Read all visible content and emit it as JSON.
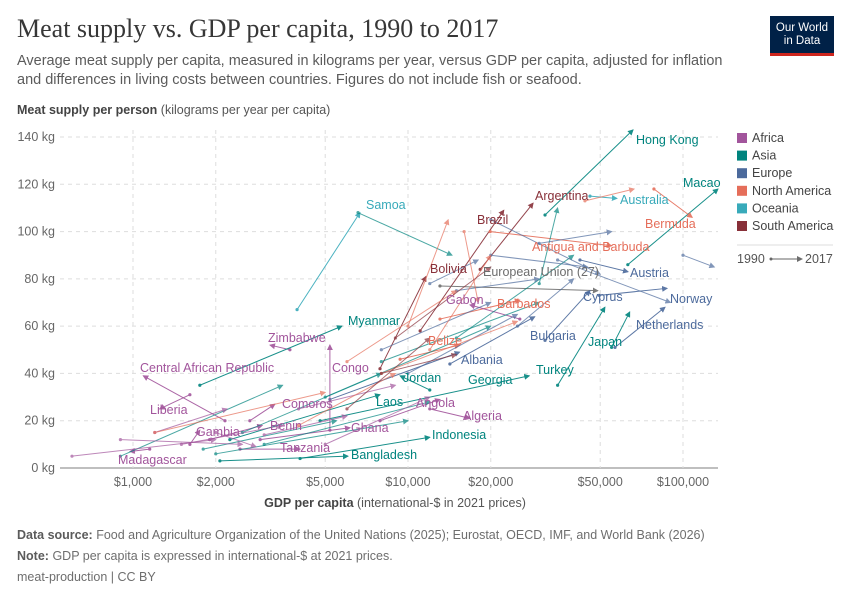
{
  "header": {
    "title": "Meat supply vs. GDP per capita, 1990 to 2017",
    "subtitle": "Average meat supply per capita, measured in kilograms per year, versus GDP per capita, adjusted for inflation and differences in living costs between countries. Figures do not include fish or seafood.",
    "logo_line1": "Our World",
    "logo_line2": "in Data"
  },
  "footer": {
    "source_label": "Data source:",
    "source_text": "Food and Agriculture Organization of the United Nations (2025); Eurostat, OECD, IMF, and World Bank (2026)",
    "note_label": "Note:",
    "note_text": "GDP per capita is expressed in international-$ at 2021 prices.",
    "license": "meat-production | CC BY"
  },
  "chart_data": {
    "type": "scatter",
    "connected": "arrows from 1990 to 2017",
    "xscale": "log",
    "xlim": [
      540,
      134000
    ],
    "ylim": [
      0,
      140
    ],
    "grid": true,
    "legend_placement": "right",
    "ylabel_bold": "Meat supply per person",
    "ylabel_rest": "(kilograms per year per capita)",
    "xlabel_bold": "GDP per capita",
    "xlabel_rest": "(international-$ in 2021 prices)",
    "xticks": [
      {
        "v": 1000,
        "label": "$1,000"
      },
      {
        "v": 2000,
        "label": "$2,000"
      },
      {
        "v": 5000,
        "label": "$5,000"
      },
      {
        "v": 10000,
        "label": "$10,000"
      },
      {
        "v": 20000,
        "label": "$20,000"
      },
      {
        "v": 50000,
        "label": "$50,000"
      },
      {
        "v": 100000,
        "label": "$100,000"
      }
    ],
    "yticks": [
      {
        "v": 0,
        "label": "0 kg"
      },
      {
        "v": 20,
        "label": "20 kg"
      },
      {
        "v": 40,
        "label": "40 kg"
      },
      {
        "v": 60,
        "label": "60 kg"
      },
      {
        "v": 80,
        "label": "80 kg"
      },
      {
        "v": 100,
        "label": "100 kg"
      },
      {
        "v": 120,
        "label": "120 kg"
      },
      {
        "v": 140,
        "label": "140 kg"
      }
    ],
    "legend": [
      {
        "name": "Africa",
        "color": "#a2559c"
      },
      {
        "name": "Asia",
        "color": "#00847e"
      },
      {
        "name": "Europe",
        "color": "#4c6a9c"
      },
      {
        "name": "North America",
        "color": "#e56e5a"
      },
      {
        "name": "Oceania",
        "color": "#38aaba"
      },
      {
        "name": "South America",
        "color": "#883039"
      }
    ],
    "time_legend": {
      "start": "1990",
      "end": "2017"
    },
    "eu_color": "#6d6d6d",
    "series": [
      {
        "name": "Hong Kong",
        "region": "Asia",
        "start": [
          31500,
          107
        ],
        "end": [
          65800,
          143
        ]
      },
      {
        "name": "Macao",
        "region": "Asia",
        "start": [
          63000,
          86
        ],
        "end": [
          134000,
          118
        ]
      },
      {
        "name": "Argentina",
        "region": "South America",
        "start": [
          18300,
          84
        ],
        "end": [
          28500,
          112
        ]
      },
      {
        "name": "Australia",
        "region": "Oceania",
        "start": [
          45900,
          115
        ],
        "end": [
          57500,
          114
        ]
      },
      {
        "name": "Bermuda",
        "region": "North America",
        "start": [
          78400,
          118
        ],
        "end": [
          108000,
          106
        ]
      },
      {
        "name": "Brazil",
        "region": "South America",
        "start": [
          11070,
          58
        ],
        "end": [
          22300,
          109
        ]
      },
      {
        "name": "Samoa",
        "region": "Oceania",
        "start": [
          3950,
          67
        ],
        "end": [
          6690,
          108
        ]
      },
      {
        "name": "Bolivia",
        "region": "South America",
        "start": [
          7910,
          42
        ],
        "end": [
          11620,
          81
        ]
      },
      {
        "name": "European Union (27)",
        "region": "EU",
        "start": [
          13070,
          77
        ],
        "end": [
          49000,
          75
        ]
      },
      {
        "name": "Austria",
        "region": "Europe",
        "start": [
          42200,
          88
        ],
        "end": [
          63100,
          83
        ]
      },
      {
        "name": "Norway",
        "region": "Europe",
        "start": [
          49600,
          73
        ],
        "end": [
          87500,
          76
        ]
      },
      {
        "name": "Netherlands",
        "region": "Europe",
        "start": [
          56600,
          51
        ],
        "end": [
          86000,
          68
        ]
      },
      {
        "name": "Cyprus",
        "region": "Europe",
        "start": [
          31500,
          54
        ],
        "end": [
          45900,
          75
        ]
      },
      {
        "name": "Japan",
        "region": "Asia",
        "start": [
          55000,
          51
        ],
        "end": [
          64000,
          66
        ]
      },
      {
        "name": "Turkey",
        "region": "Asia",
        "start": [
          35000,
          35
        ],
        "end": [
          52000,
          68
        ]
      },
      {
        "name": "Bulgaria",
        "region": "Europe",
        "start": [
          14200,
          44
        ],
        "end": [
          28900,
          64
        ]
      },
      {
        "name": "Barbados",
        "region": "North America",
        "start": [
          13070,
          63
        ],
        "end": [
          25500,
          71
        ]
      },
      {
        "name": "Antigua and Barbuda",
        "region": "North America",
        "start": [
          19900,
          100
        ],
        "end": [
          55000,
          94
        ]
      },
      {
        "name": "Gabon",
        "region": "Africa",
        "start": [
          25500,
          63
        ],
        "end": [
          16800,
          69
        ]
      },
      {
        "name": "Belize",
        "region": "North America",
        "start": [
          9360,
          46
        ],
        "end": [
          15400,
          52
        ]
      },
      {
        "name": "Albania",
        "region": "Europe",
        "start": [
          5200,
          29
        ],
        "end": [
          15400,
          49
        ]
      },
      {
        "name": "Jordan",
        "region": "Asia",
        "start": [
          12000,
          33
        ],
        "end": [
          9360,
          39
        ]
      },
      {
        "name": "Georgia",
        "region": "Asia",
        "start": [
          4790,
          20
        ],
        "end": [
          27600,
          39
        ]
      },
      {
        "name": "Laos",
        "region": "Asia",
        "start": [
          2250,
          12
        ],
        "end": [
          7910,
          31
        ]
      },
      {
        "name": "Angola",
        "region": "Africa",
        "start": [
          7910,
          20
        ],
        "end": [
          13070,
          29
        ]
      },
      {
        "name": "Algeria",
        "region": "Africa",
        "start": [
          12000,
          25
        ],
        "end": [
          16800,
          21
        ]
      },
      {
        "name": "Indonesia",
        "region": "Asia",
        "start": [
          4050,
          4
        ],
        "end": [
          12000,
          13
        ]
      },
      {
        "name": "Bangladesh",
        "region": "Asia",
        "start": [
          2070,
          3
        ],
        "end": [
          6050,
          5
        ]
      },
      {
        "name": "Ghana",
        "region": "Africa",
        "start": [
          2900,
          12
        ],
        "end": [
          6150,
          17
        ]
      },
      {
        "name": "Tanzania",
        "region": "Africa",
        "start": [
          2450,
          8
        ],
        "end": [
          4050,
          8
        ]
      },
      {
        "name": "Benin",
        "region": "Africa",
        "start": [
          1900,
          12
        ],
        "end": [
          2950,
          18
        ]
      },
      {
        "name": "Comoros",
        "region": "Africa",
        "start": [
          2660,
          20
        ],
        "end": [
          3280,
          27
        ]
      },
      {
        "name": "Gambia",
        "region": "Africa",
        "start": [
          1610,
          10
        ],
        "end": [
          1750,
          16
        ]
      },
      {
        "name": "Madagascar",
        "region": "Africa",
        "start": [
          1150,
          8
        ],
        "end": [
          975,
          7
        ]
      },
      {
        "name": "Liberia",
        "region": "Africa",
        "start": [
          1610,
          31
        ],
        "end": [
          1250,
          25
        ]
      },
      {
        "name": "Central African Republic",
        "region": "Africa",
        "start": [
          2160,
          20
        ],
        "end": [
          1090,
          39
        ]
      },
      {
        "name": "Zimbabwe",
        "region": "Africa",
        "start": [
          3720,
          50
        ],
        "end": [
          3150,
          52
        ]
      },
      {
        "name": "Congo",
        "region": "Africa",
        "start": [
          5200,
          16
        ],
        "end": [
          5200,
          52
        ]
      },
      {
        "name": "Myanmar",
        "region": "Asia",
        "start": [
          1750,
          35
        ],
        "end": [
          5750,
          60
        ]
      },
      {
        "region": "Asia",
        "start": [
          6580,
          108
        ],
        "end": [
          14450,
          90
        ]
      },
      {
        "region": "North America",
        "start": [
          44000,
          113
        ],
        "end": [
          66400,
          118
        ]
      },
      {
        "region": "Asia",
        "start": [
          3000,
          10
        ],
        "end": [
          12000,
          28
        ]
      },
      {
        "region": "Asia",
        "start": [
          2000,
          6
        ],
        "end": [
          10000,
          20
        ]
      },
      {
        "region": "Asia",
        "start": [
          1800,
          8
        ],
        "end": [
          5500,
          20
        ]
      },
      {
        "region": "Asia",
        "start": [
          5000,
          30
        ],
        "end": [
          20000,
          60
        ]
      },
      {
        "region": "Asia",
        "start": [
          8000,
          45
        ],
        "end": [
          30000,
          70
        ]
      },
      {
        "region": "Asia",
        "start": [
          15000,
          55
        ],
        "end": [
          40000,
          90
        ]
      },
      {
        "region": "Asia",
        "start": [
          900,
          5
        ],
        "end": [
          3500,
          35
        ]
      },
      {
        "region": "Asia",
        "start": [
          2500,
          15
        ],
        "end": [
          8000,
          40
        ]
      },
      {
        "region": "Asia",
        "start": [
          30000,
          78
        ],
        "end": [
          35000,
          110
        ]
      },
      {
        "region": "Europe",
        "start": [
          15000,
          75
        ],
        "end": [
          30000,
          80
        ]
      },
      {
        "region": "Europe",
        "start": [
          20000,
          90
        ],
        "end": [
          45000,
          85
        ]
      },
      {
        "region": "Europe",
        "start": [
          30000,
          95
        ],
        "end": [
          55000,
          100
        ]
      },
      {
        "region": "Europe",
        "start": [
          25000,
          60
        ],
        "end": [
          40000,
          80
        ]
      },
      {
        "region": "Europe",
        "start": [
          10000,
          40
        ],
        "end": [
          25000,
          65
        ]
      },
      {
        "region": "Europe",
        "start": [
          8000,
          50
        ],
        "end": [
          20000,
          70
        ]
      },
      {
        "region": "Europe",
        "start": [
          35000,
          88
        ],
        "end": [
          90000,
          70
        ]
      },
      {
        "region": "Europe",
        "start": [
          100000,
          90
        ],
        "end": [
          130000,
          85
        ]
      },
      {
        "region": "Europe",
        "start": [
          20000,
          105
        ],
        "end": [
          50000,
          82
        ]
      },
      {
        "region": "Europe",
        "start": [
          12000,
          78
        ],
        "end": [
          18000,
          88
        ]
      },
      {
        "region": "Africa",
        "start": [
          900,
          12
        ],
        "end": [
          2500,
          10
        ]
      },
      {
        "region": "Africa",
        "start": [
          600,
          5
        ],
        "end": [
          2000,
          12
        ]
      },
      {
        "region": "Africa",
        "start": [
          1200,
          15
        ],
        "end": [
          2200,
          25
        ]
      },
      {
        "region": "Africa",
        "start": [
          3000,
          14
        ],
        "end": [
          6000,
          22
        ]
      },
      {
        "region": "Africa",
        "start": [
          5000,
          10
        ],
        "end": [
          12000,
          30
        ]
      },
      {
        "region": "Africa",
        "start": [
          1500,
          10
        ],
        "end": [
          3500,
          18
        ]
      },
      {
        "region": "Africa",
        "start": [
          4000,
          25
        ],
        "end": [
          9000,
          35
        ]
      },
      {
        "region": "Africa",
        "start": [
          2000,
          15
        ],
        "end": [
          2800,
          9
        ]
      },
      {
        "region": "North America",
        "start": [
          1200,
          15
        ],
        "end": [
          5000,
          32
        ]
      },
      {
        "region": "North America",
        "start": [
          6000,
          45
        ],
        "end": [
          15000,
          75
        ]
      },
      {
        "region": "North America",
        "start": [
          10000,
          60
        ],
        "end": [
          14000,
          105
        ]
      },
      {
        "region": "North America",
        "start": [
          12000,
          50
        ],
        "end": [
          20000,
          90
        ]
      },
      {
        "region": "North America",
        "start": [
          8000,
          40
        ],
        "end": [
          25000,
          62
        ]
      },
      {
        "region": "North America",
        "start": [
          16000,
          100
        ],
        "end": [
          18000,
          70
        ]
      },
      {
        "region": "North America",
        "start": [
          4000,
          18
        ],
        "end": [
          9000,
          40
        ]
      },
      {
        "region": "South America",
        "start": [
          8000,
          40
        ],
        "end": [
          15000,
          48
        ]
      },
      {
        "region": "South America",
        "start": [
          6000,
          25
        ],
        "end": [
          12000,
          55
        ]
      },
      {
        "region": "South America",
        "start": [
          9000,
          55
        ],
        "end": [
          20000,
          85
        ]
      }
    ]
  }
}
